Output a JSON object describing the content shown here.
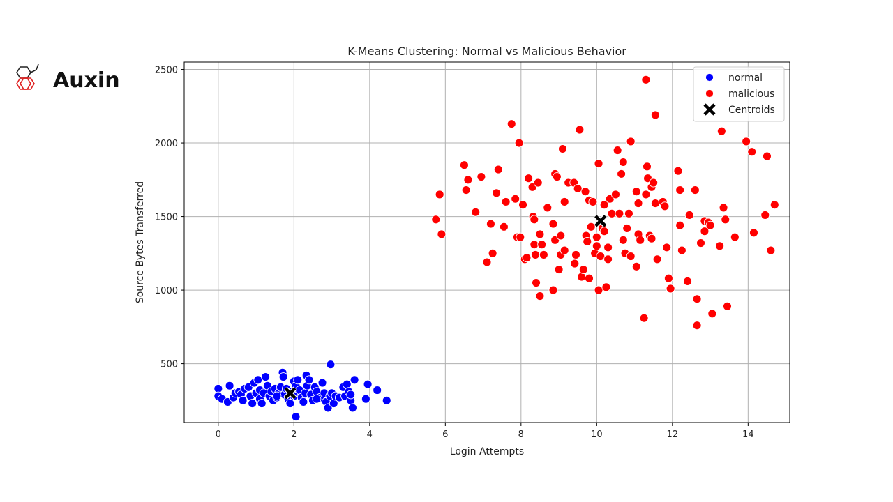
{
  "logo": {
    "text": "Auxin",
    "icon": "hexagon-molecule-icon"
  },
  "chart_data": {
    "type": "scatter",
    "title": "K-Means Clustering: Normal vs Malicious Behavior",
    "xlabel": "Login Attempts",
    "ylabel": "Source Bytes Transferred",
    "xlim": [
      -0.9,
      15.1
    ],
    "ylim": [
      100,
      2550
    ],
    "xticks": [
      0,
      2,
      4,
      6,
      8,
      10,
      12,
      14
    ],
    "yticks": [
      500,
      1000,
      1500,
      2000,
      2500
    ],
    "grid": true,
    "legend_position": "top-right",
    "legend": [
      "normal",
      "malicious",
      "Centroids"
    ],
    "series": [
      {
        "name": "normal",
        "color": "#0000ff",
        "points": [
          [
            0.0,
            330
          ],
          [
            0.0,
            280
          ],
          [
            0.1,
            260
          ],
          [
            0.25,
            240
          ],
          [
            0.3,
            350
          ],
          [
            0.4,
            270
          ],
          [
            0.45,
            300
          ],
          [
            0.55,
            310
          ],
          [
            0.6,
            290
          ],
          [
            0.65,
            250
          ],
          [
            0.7,
            330
          ],
          [
            0.8,
            340
          ],
          [
            0.85,
            280
          ],
          [
            0.9,
            230
          ],
          [
            0.95,
            370
          ],
          [
            1.0,
            300
          ],
          [
            1.05,
            390
          ],
          [
            1.1,
            320
          ],
          [
            1.1,
            260
          ],
          [
            1.15,
            230
          ],
          [
            1.2,
            300
          ],
          [
            1.25,
            410
          ],
          [
            1.3,
            350
          ],
          [
            1.35,
            280
          ],
          [
            1.4,
            310
          ],
          [
            1.45,
            250
          ],
          [
            1.5,
            330
          ],
          [
            1.55,
            270
          ],
          [
            1.6,
            300
          ],
          [
            1.65,
            340
          ],
          [
            1.7,
            440
          ],
          [
            1.72,
            410
          ],
          [
            1.75,
            290
          ],
          [
            1.8,
            330
          ],
          [
            1.85,
            260
          ],
          [
            1.9,
            230
          ],
          [
            1.95,
            310
          ],
          [
            2.0,
            380
          ],
          [
            2.0,
            280
          ],
          [
            2.05,
            350
          ],
          [
            2.1,
            390
          ],
          [
            2.15,
            320
          ],
          [
            2.2,
            270
          ],
          [
            2.25,
            240
          ],
          [
            2.3,
            300
          ],
          [
            2.33,
            420
          ],
          [
            2.35,
            350
          ],
          [
            2.4,
            390
          ],
          [
            2.45,
            290
          ],
          [
            2.5,
            250
          ],
          [
            2.55,
            340
          ],
          [
            2.6,
            310
          ],
          [
            2.7,
            270
          ],
          [
            2.75,
            370
          ],
          [
            2.8,
            300
          ],
          [
            2.85,
            240
          ],
          [
            2.9,
            200
          ],
          [
            2.95,
            280
          ],
          [
            2.97,
            495
          ],
          [
            3.0,
            300
          ],
          [
            3.05,
            230
          ],
          [
            3.1,
            280
          ],
          [
            3.2,
            270
          ],
          [
            3.3,
            340
          ],
          [
            3.35,
            280
          ],
          [
            3.4,
            360
          ],
          [
            3.45,
            310
          ],
          [
            3.5,
            250
          ],
          [
            3.5,
            290
          ],
          [
            3.55,
            200
          ],
          [
            3.6,
            390
          ],
          [
            3.9,
            260
          ],
          [
            3.95,
            360
          ],
          [
            4.2,
            320
          ],
          [
            4.45,
            250
          ],
          [
            2.05,
            140
          ],
          [
            1.55,
            280
          ],
          [
            2.6,
            260
          ]
        ]
      },
      {
        "name": "malicious",
        "color": "#ff0000",
        "points": [
          [
            5.75,
            1480
          ],
          [
            5.85,
            1650
          ],
          [
            5.9,
            1380
          ],
          [
            6.5,
            1850
          ],
          [
            6.55,
            1680
          ],
          [
            6.6,
            1750
          ],
          [
            6.8,
            1530
          ],
          [
            6.95,
            1770
          ],
          [
            7.1,
            1190
          ],
          [
            7.2,
            1450
          ],
          [
            7.25,
            1250
          ],
          [
            7.35,
            1660
          ],
          [
            7.4,
            1820
          ],
          [
            7.55,
            1430
          ],
          [
            7.6,
            1600
          ],
          [
            7.75,
            2130
          ],
          [
            7.85,
            1620
          ],
          [
            7.9,
            1360
          ],
          [
            7.95,
            2000
          ],
          [
            7.98,
            1360
          ],
          [
            8.05,
            1580
          ],
          [
            8.1,
            1210
          ],
          [
            8.15,
            1220
          ],
          [
            8.2,
            1760
          ],
          [
            8.3,
            1700
          ],
          [
            8.32,
            1500
          ],
          [
            8.35,
            1480
          ],
          [
            8.35,
            1310
          ],
          [
            8.38,
            1240
          ],
          [
            8.4,
            1050
          ],
          [
            8.45,
            1730
          ],
          [
            8.5,
            960
          ],
          [
            8.5,
            1380
          ],
          [
            8.55,
            1310
          ],
          [
            8.6,
            1240
          ],
          [
            8.7,
            1560
          ],
          [
            8.85,
            1450
          ],
          [
            8.85,
            1000
          ],
          [
            8.9,
            1790
          ],
          [
            8.9,
            1340
          ],
          [
            8.95,
            1770
          ],
          [
            9.0,
            1140
          ],
          [
            9.05,
            1370
          ],
          [
            9.05,
            1240
          ],
          [
            9.1,
            1960
          ],
          [
            9.15,
            1270
          ],
          [
            9.15,
            1600
          ],
          [
            9.25,
            1730
          ],
          [
            9.4,
            1730
          ],
          [
            9.42,
            1180
          ],
          [
            9.45,
            1240
          ],
          [
            9.5,
            1690
          ],
          [
            9.55,
            2090
          ],
          [
            9.6,
            1090
          ],
          [
            9.65,
            1140
          ],
          [
            9.7,
            1670
          ],
          [
            9.72,
            1370
          ],
          [
            9.75,
            1330
          ],
          [
            9.8,
            1080
          ],
          [
            9.8,
            1610
          ],
          [
            9.85,
            1430
          ],
          [
            9.9,
            1600
          ],
          [
            9.95,
            1250
          ],
          [
            10.0,
            1360
          ],
          [
            10.0,
            1300
          ],
          [
            10.05,
            1860
          ],
          [
            10.05,
            1000
          ],
          [
            10.1,
            1230
          ],
          [
            10.15,
            1420
          ],
          [
            10.2,
            1580
          ],
          [
            10.2,
            1400
          ],
          [
            10.25,
            1020
          ],
          [
            10.3,
            1290
          ],
          [
            10.3,
            1210
          ],
          [
            10.35,
            1620
          ],
          [
            10.4,
            1520
          ],
          [
            10.5,
            1650
          ],
          [
            10.55,
            1950
          ],
          [
            10.6,
            1520
          ],
          [
            10.65,
            1790
          ],
          [
            10.7,
            1870
          ],
          [
            10.7,
            1340
          ],
          [
            10.75,
            1250
          ],
          [
            10.8,
            1420
          ],
          [
            10.85,
            1520
          ],
          [
            10.9,
            2010
          ],
          [
            10.9,
            1230
          ],
          [
            11.05,
            1160
          ],
          [
            11.05,
            1670
          ],
          [
            11.1,
            1590
          ],
          [
            11.1,
            1380
          ],
          [
            11.15,
            1340
          ],
          [
            11.25,
            810
          ],
          [
            11.3,
            1650
          ],
          [
            11.3,
            2430
          ],
          [
            11.33,
            1840
          ],
          [
            11.35,
            1760
          ],
          [
            11.4,
            1370
          ],
          [
            11.45,
            1700
          ],
          [
            11.45,
            1350
          ],
          [
            11.5,
            1730
          ],
          [
            11.55,
            1590
          ],
          [
            11.55,
            2190
          ],
          [
            11.6,
            1210
          ],
          [
            11.75,
            1600
          ],
          [
            11.8,
            1570
          ],
          [
            11.85,
            1290
          ],
          [
            11.9,
            1080
          ],
          [
            11.95,
            1010
          ],
          [
            12.15,
            1810
          ],
          [
            12.2,
            1680
          ],
          [
            12.2,
            1440
          ],
          [
            12.25,
            1270
          ],
          [
            12.4,
            1060
          ],
          [
            12.45,
            1510
          ],
          [
            12.6,
            1680
          ],
          [
            12.65,
            940
          ],
          [
            12.65,
            760
          ],
          [
            12.75,
            1320
          ],
          [
            12.85,
            1470
          ],
          [
            12.85,
            1400
          ],
          [
            12.95,
            1460
          ],
          [
            13.0,
            1440
          ],
          [
            13.05,
            840
          ],
          [
            13.25,
            1300
          ],
          [
            13.3,
            2080
          ],
          [
            13.35,
            1560
          ],
          [
            13.4,
            1480
          ],
          [
            13.45,
            890
          ],
          [
            13.65,
            1360
          ],
          [
            13.95,
            2010
          ],
          [
            14.1,
            1940
          ],
          [
            14.15,
            1390
          ],
          [
            14.45,
            1510
          ],
          [
            14.5,
            1910
          ],
          [
            14.6,
            1270
          ],
          [
            14.7,
            1580
          ]
        ]
      },
      {
        "name": "Centroids",
        "color": "#000000",
        "marker": "x",
        "points": [
          [
            1.9,
            300
          ],
          [
            10.1,
            1470
          ]
        ]
      }
    ]
  }
}
